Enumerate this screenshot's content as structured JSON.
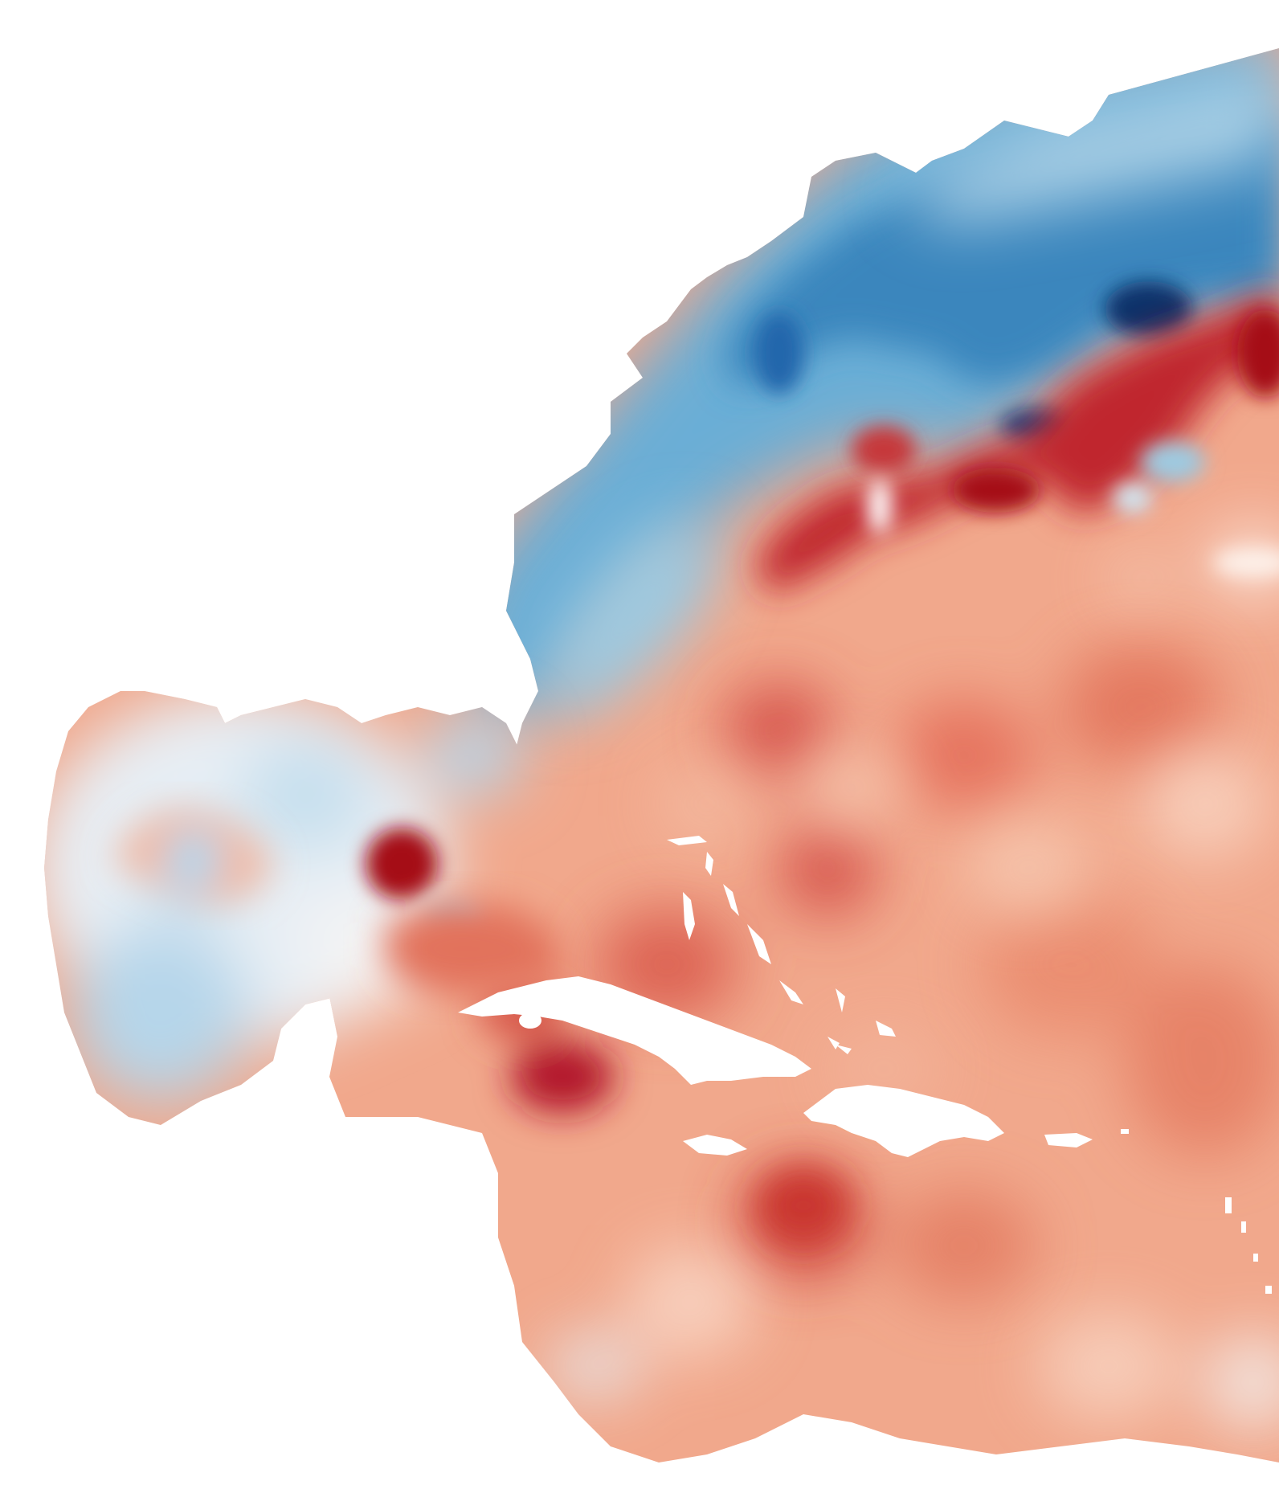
{
  "map": {
    "colors": {
      "background": "#ffffff",
      "deep_red": "#b2182b",
      "red": "#d6604d",
      "light_red": "#f4a582",
      "pale_red": "#fbd9c9",
      "neutral": "#f7f7f7",
      "pale_blue": "#d1e5f0",
      "light_blue": "#92c5de",
      "blue": "#4393c3",
      "deep_blue": "#2166ac",
      "darkest_blue": "#053061"
    }
  }
}
